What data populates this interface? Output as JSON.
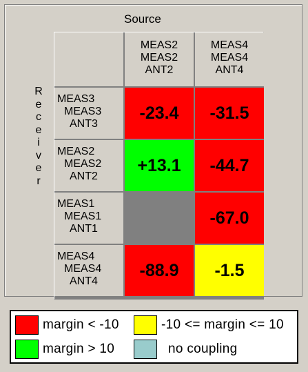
{
  "matrix": {
    "source_label": "Source",
    "receiver_label": "Receiver",
    "columns": [
      {
        "lines": [
          "MEAS2",
          "MEAS2",
          "ANT2"
        ]
      },
      {
        "lines": [
          "MEAS4",
          "MEAS4",
          "ANT4"
        ]
      }
    ],
    "rows": [
      {
        "lines": [
          "MEAS3",
          "MEAS3",
          "ANT3"
        ],
        "cells": [
          {
            "value": "-23.4",
            "status": "red"
          },
          {
            "value": "-31.5",
            "status": "red"
          }
        ]
      },
      {
        "lines": [
          "MEAS2",
          "MEAS2",
          "ANT2"
        ],
        "cells": [
          {
            "value": "+13.1",
            "status": "green"
          },
          {
            "value": "-44.7",
            "status": "red"
          }
        ]
      },
      {
        "lines": [
          "MEAS1",
          "MEAS1",
          "ANT1"
        ],
        "cells": [
          {
            "value": "",
            "status": "gray"
          },
          {
            "value": "-67.0",
            "status": "red"
          }
        ]
      },
      {
        "lines": [
          "MEAS4",
          "MEAS4",
          "ANT4"
        ],
        "cells": [
          {
            "value": "-88.9",
            "status": "red"
          },
          {
            "value": "-1.5",
            "status": "yellow"
          }
        ]
      }
    ]
  },
  "colors": {
    "red": "#ff0000",
    "green": "#00ff00",
    "yellow": "#ffff00",
    "gray": "#808080",
    "teal": "#99cccc"
  },
  "legend": [
    {
      "color": "red",
      "label": "margin < -10"
    },
    {
      "color": "yellow",
      "label": "-10 <= margin <= 10"
    },
    {
      "color": "green",
      "label": "margin > 10"
    },
    {
      "color": "teal",
      "label": "no coupling"
    }
  ]
}
